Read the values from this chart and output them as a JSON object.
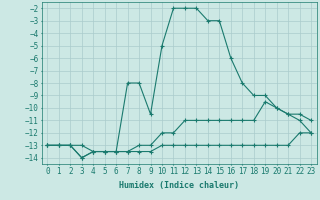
{
  "xlabel": "Humidex (Indice chaleur)",
  "bg_color": "#cce8e4",
  "grid_color": "#aacccc",
  "line_color": "#1a7a6e",
  "xlim": [
    -0.5,
    23.5
  ],
  "ylim": [
    -14.5,
    -1.5
  ],
  "xticks": [
    0,
    1,
    2,
    3,
    4,
    5,
    6,
    7,
    8,
    9,
    10,
    11,
    12,
    13,
    14,
    15,
    16,
    17,
    18,
    19,
    20,
    21,
    22,
    23
  ],
  "yticks": [
    -2,
    -3,
    -4,
    -5,
    -6,
    -7,
    -8,
    -9,
    -10,
    -11,
    -12,
    -13,
    -14
  ],
  "series": [
    {
      "x": [
        0,
        1,
        2,
        3,
        4,
        5,
        6,
        7,
        8,
        9,
        10,
        11,
        12,
        13,
        14,
        15,
        16,
        17,
        18,
        19,
        20,
        21,
        22,
        23
      ],
      "y": [
        -13,
        -13,
        -13,
        -14,
        -13.5,
        -13.5,
        -13.5,
        -8,
        -8,
        -10.5,
        -5,
        -2,
        -2,
        -2,
        -3,
        -3,
        -6,
        -8,
        -9,
        -9,
        -10,
        -10.5,
        -11,
        -12
      ]
    },
    {
      "x": [
        0,
        1,
        2,
        3,
        4,
        5,
        6,
        7,
        8,
        9,
        10,
        11,
        12,
        13,
        14,
        15,
        16,
        17,
        18,
        19,
        20,
        21,
        22,
        23
      ],
      "y": [
        -13,
        -13,
        -13,
        -14,
        -13.5,
        -13.5,
        -13.5,
        -13.5,
        -13,
        -13,
        -12,
        -12,
        -11,
        -11,
        -11,
        -11,
        -11,
        -11,
        -11,
        -9.5,
        -10,
        -10.5,
        -10.5,
        -11
      ]
    },
    {
      "x": [
        0,
        1,
        2,
        3,
        4,
        5,
        6,
        7,
        8,
        9,
        10,
        11,
        12,
        13,
        14,
        15,
        16,
        17,
        18,
        19,
        20,
        21,
        22,
        23
      ],
      "y": [
        -13,
        -13,
        -13,
        -13,
        -13.5,
        -13.5,
        -13.5,
        -13.5,
        -13.5,
        -13.5,
        -13,
        -13,
        -13,
        -13,
        -13,
        -13,
        -13,
        -13,
        -13,
        -13,
        -13,
        -13,
        -12,
        -12
      ]
    }
  ]
}
